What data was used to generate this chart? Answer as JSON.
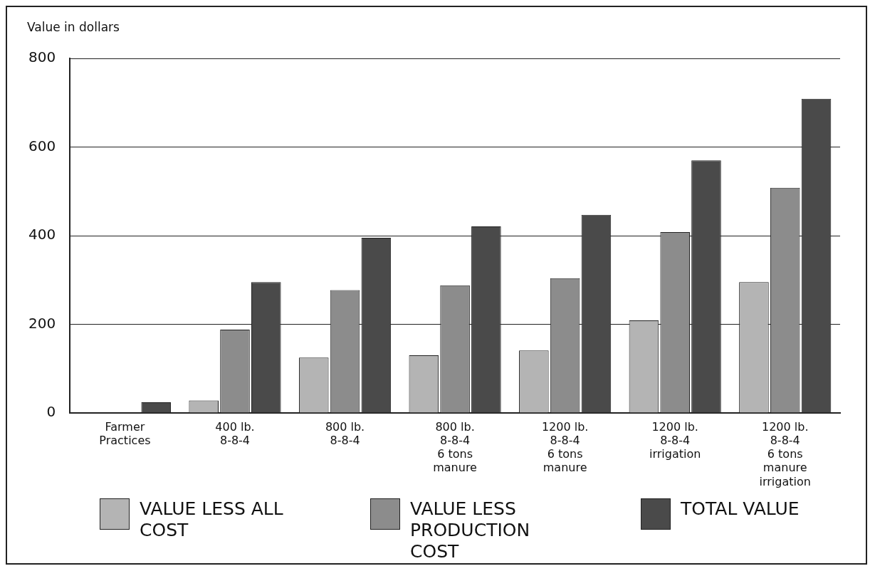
{
  "chart_data": {
    "type": "bar",
    "ylabel": "Value in dollars",
    "categories": [
      "Farmer\nPractices",
      "400 lb.\n8-8-4",
      "800 lb.\n8-8-4",
      "800 lb.\n8-8-4\n6 tons\nmanure",
      "1200 lb.\n8-8-4\n6 tons\nmanure",
      "1200 lb.\n8-8-4\nirrigation",
      "1200 lb.\n8-8-4\n6 tons\nmanure\nirrigation"
    ],
    "series": [
      {
        "name": "VALUE LESS ALL COST",
        "color": "#b4b4b4",
        "values": [
          null,
          28,
          125,
          130,
          141,
          209,
          295
        ]
      },
      {
        "name": "VALUE LESS PRODUCTION COST",
        "color": "#8c8c8c",
        "values": [
          null,
          188,
          277,
          288,
          304,
          408,
          508
        ]
      },
      {
        "name": "TOTAL VALUE",
        "color": "#4a4a4a",
        "values": [
          24,
          295,
          395,
          421,
          447,
          570,
          709
        ]
      }
    ],
    "ylim": [
      0,
      800
    ],
    "yticks": [
      0,
      200,
      400,
      600,
      800
    ],
    "grid": "y",
    "legend": "bottom"
  }
}
